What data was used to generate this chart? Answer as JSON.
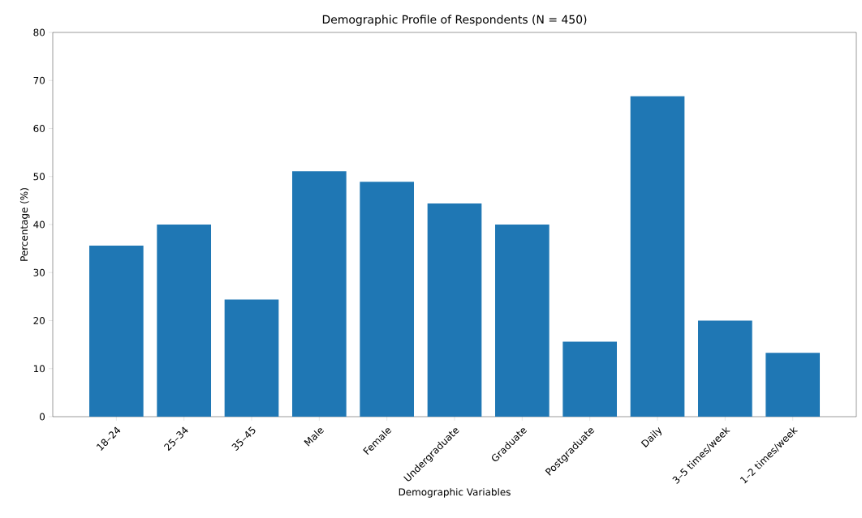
{
  "chart_data": {
    "type": "bar",
    "title": "Demographic Profile of Respondents (N = 450)",
    "xlabel": "Demographic Variables",
    "ylabel": "Percentage (%)",
    "categories": [
      "18–24",
      "25–34",
      "35–45",
      "Male",
      "Female",
      "Undergraduate",
      "Graduate",
      "Postgraduate",
      "Daily",
      "3–5 times/week",
      "1–2 times/week"
    ],
    "values": [
      35.6,
      40.0,
      24.4,
      51.1,
      48.9,
      44.4,
      40.0,
      15.6,
      66.7,
      20.0,
      13.3
    ],
    "color": "#1f77b4",
    "ylim": [
      0,
      80
    ],
    "yticks": [
      0,
      10,
      20,
      30,
      40,
      50,
      60,
      70,
      80
    ],
    "grid": false
  }
}
